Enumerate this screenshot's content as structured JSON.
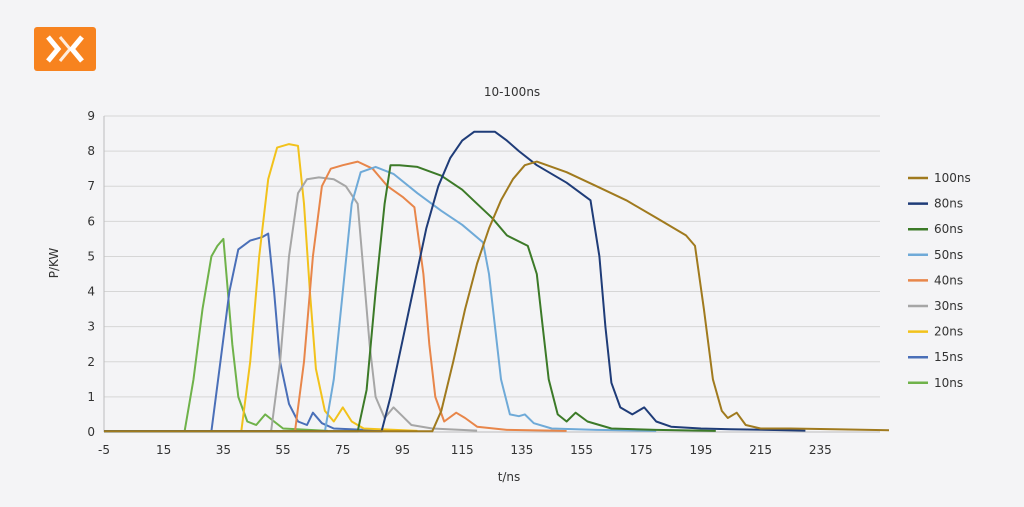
{
  "logo": {
    "name": "brand-logo",
    "color": "#f7831f"
  },
  "chart_data": {
    "type": "line",
    "title": "10-100ns",
    "xlabel": "t/ns",
    "ylabel": "P/KW",
    "xlim": [
      -5,
      255
    ],
    "ylim": [
      0,
      9
    ],
    "xticks": [
      -5,
      15,
      35,
      55,
      75,
      95,
      115,
      135,
      155,
      175,
      195,
      215,
      235
    ],
    "yticks": [
      0,
      1,
      2,
      3,
      4,
      5,
      6,
      7,
      8,
      9
    ],
    "grid": true,
    "legend_position": "right",
    "series": [
      {
        "name": "100ns",
        "color": "#a07a1e",
        "points": [
          [
            -5,
            0.02
          ],
          [
            105,
            0.02
          ],
          [
            108,
            0.6
          ],
          [
            112,
            2.0
          ],
          [
            116,
            3.5
          ],
          [
            120,
            4.8
          ],
          [
            124,
            5.8
          ],
          [
            128,
            6.6
          ],
          [
            132,
            7.2
          ],
          [
            136,
            7.6
          ],
          [
            140,
            7.7
          ],
          [
            150,
            7.4
          ],
          [
            160,
            7.0
          ],
          [
            170,
            6.6
          ],
          [
            180,
            6.1
          ],
          [
            190,
            5.6
          ],
          [
            193,
            5.3
          ],
          [
            196,
            3.5
          ],
          [
            199,
            1.5
          ],
          [
            202,
            0.6
          ],
          [
            204,
            0.4
          ],
          [
            207,
            0.55
          ],
          [
            210,
            0.2
          ],
          [
            215,
            0.1
          ],
          [
            225,
            0.1
          ],
          [
            240,
            0.08
          ],
          [
            258,
            0.05
          ]
        ]
      },
      {
        "name": "80ns",
        "color": "#1f3c78",
        "points": [
          [
            -5,
            0.02
          ],
          [
            88,
            0.02
          ],
          [
            91,
            1.0
          ],
          [
            95,
            2.6
          ],
          [
            99,
            4.2
          ],
          [
            103,
            5.8
          ],
          [
            107,
            7.0
          ],
          [
            111,
            7.8
          ],
          [
            115,
            8.3
          ],
          [
            119,
            8.55
          ],
          [
            126,
            8.55
          ],
          [
            130,
            8.3
          ],
          [
            134,
            8.0
          ],
          [
            140,
            7.6
          ],
          [
            150,
            7.1
          ],
          [
            158,
            6.6
          ],
          [
            161,
            5.0
          ],
          [
            163,
            3.0
          ],
          [
            165,
            1.4
          ],
          [
            168,
            0.7
          ],
          [
            172,
            0.5
          ],
          [
            176,
            0.7
          ],
          [
            180,
            0.3
          ],
          [
            185,
            0.15
          ],
          [
            195,
            0.1
          ],
          [
            205,
            0.08
          ],
          [
            230,
            0.04
          ]
        ]
      },
      {
        "name": "60ns",
        "color": "#3c7a28",
        "points": [
          [
            -5,
            0.02
          ],
          [
            80,
            0.02
          ],
          [
            83,
            1.2
          ],
          [
            86,
            4.0
          ],
          [
            89,
            6.5
          ],
          [
            91,
            7.6
          ],
          [
            94,
            7.6
          ],
          [
            100,
            7.55
          ],
          [
            108,
            7.3
          ],
          [
            115,
            6.9
          ],
          [
            120,
            6.5
          ],
          [
            125,
            6.1
          ],
          [
            130,
            5.6
          ],
          [
            137,
            5.3
          ],
          [
            140,
            4.5
          ],
          [
            142,
            3.0
          ],
          [
            144,
            1.5
          ],
          [
            147,
            0.5
          ],
          [
            150,
            0.3
          ],
          [
            153,
            0.55
          ],
          [
            157,
            0.3
          ],
          [
            165,
            0.1
          ],
          [
            180,
            0.06
          ],
          [
            200,
            0.03
          ]
        ]
      },
      {
        "name": "50ns",
        "color": "#6faad8",
        "points": [
          [
            -5,
            0.02
          ],
          [
            69,
            0.02
          ],
          [
            72,
            1.5
          ],
          [
            75,
            4.0
          ],
          [
            78,
            6.5
          ],
          [
            81,
            7.4
          ],
          [
            86,
            7.55
          ],
          [
            92,
            7.35
          ],
          [
            100,
            6.8
          ],
          [
            108,
            6.3
          ],
          [
            115,
            5.9
          ],
          [
            122,
            5.4
          ],
          [
            124,
            4.5
          ],
          [
            126,
            3.0
          ],
          [
            128,
            1.5
          ],
          [
            131,
            0.5
          ],
          [
            134,
            0.45
          ],
          [
            136,
            0.5
          ],
          [
            139,
            0.25
          ],
          [
            145,
            0.1
          ],
          [
            160,
            0.06
          ],
          [
            180,
            0.03
          ]
        ]
      },
      {
        "name": "40ns",
        "color": "#e8864a",
        "points": [
          [
            -5,
            0.02
          ],
          [
            59,
            0.02
          ],
          [
            62,
            2.0
          ],
          [
            65,
            5.0
          ],
          [
            68,
            7.0
          ],
          [
            71,
            7.5
          ],
          [
            75,
            7.6
          ],
          [
            80,
            7.7
          ],
          [
            85,
            7.5
          ],
          [
            90,
            7.0
          ],
          [
            95,
            6.7
          ],
          [
            99,
            6.4
          ],
          [
            102,
            4.5
          ],
          [
            104,
            2.5
          ],
          [
            106,
            1.0
          ],
          [
            109,
            0.3
          ],
          [
            113,
            0.55
          ],
          [
            116,
            0.4
          ],
          [
            120,
            0.15
          ],
          [
            130,
            0.06
          ],
          [
            150,
            0.03
          ]
        ]
      },
      {
        "name": "30ns",
        "color": "#a6a6a6",
        "points": [
          [
            -5,
            0.02
          ],
          [
            51,
            0.02
          ],
          [
            54,
            2.0
          ],
          [
            57,
            5.0
          ],
          [
            60,
            6.8
          ],
          [
            63,
            7.2
          ],
          [
            67,
            7.25
          ],
          [
            72,
            7.2
          ],
          [
            76,
            7.0
          ],
          [
            80,
            6.5
          ],
          [
            82,
            4.5
          ],
          [
            84,
            2.5
          ],
          [
            86,
            1.0
          ],
          [
            89,
            0.4
          ],
          [
            92,
            0.7
          ],
          [
            95,
            0.45
          ],
          [
            98,
            0.2
          ],
          [
            105,
            0.1
          ],
          [
            120,
            0.04
          ]
        ]
      },
      {
        "name": "20ns",
        "color": "#f2c21b",
        "points": [
          [
            -5,
            0.02
          ],
          [
            41,
            0.02
          ],
          [
            44,
            2.0
          ],
          [
            47,
            5.0
          ],
          [
            50,
            7.2
          ],
          [
            53,
            8.1
          ],
          [
            57,
            8.2
          ],
          [
            60,
            8.15
          ],
          [
            62,
            6.5
          ],
          [
            64,
            4.0
          ],
          [
            66,
            1.8
          ],
          [
            69,
            0.6
          ],
          [
            72,
            0.3
          ],
          [
            75,
            0.7
          ],
          [
            78,
            0.3
          ],
          [
            82,
            0.1
          ],
          [
            100,
            0.03
          ]
        ]
      },
      {
        "name": "15ns",
        "color": "#4a6fb8",
        "points": [
          [
            -5,
            0.02
          ],
          [
            31,
            0.02
          ],
          [
            34,
            2.0
          ],
          [
            37,
            4.0
          ],
          [
            40,
            5.2
          ],
          [
            44,
            5.45
          ],
          [
            48,
            5.55
          ],
          [
            50,
            5.65
          ],
          [
            52,
            4.0
          ],
          [
            54,
            2.0
          ],
          [
            57,
            0.8
          ],
          [
            60,
            0.3
          ],
          [
            63,
            0.2
          ],
          [
            65,
            0.55
          ],
          [
            68,
            0.25
          ],
          [
            72,
            0.1
          ],
          [
            90,
            0.03
          ]
        ]
      },
      {
        "name": "10ns",
        "color": "#6fb24a",
        "points": [
          [
            -5,
            0.02
          ],
          [
            22,
            0.02
          ],
          [
            25,
            1.5
          ],
          [
            28,
            3.5
          ],
          [
            31,
            5.0
          ],
          [
            33,
            5.3
          ],
          [
            35,
            5.5
          ],
          [
            36,
            4.5
          ],
          [
            38,
            2.5
          ],
          [
            40,
            1.0
          ],
          [
            43,
            0.3
          ],
          [
            46,
            0.2
          ],
          [
            49,
            0.5
          ],
          [
            52,
            0.3
          ],
          [
            55,
            0.1
          ],
          [
            70,
            0.03
          ]
        ]
      }
    ]
  }
}
